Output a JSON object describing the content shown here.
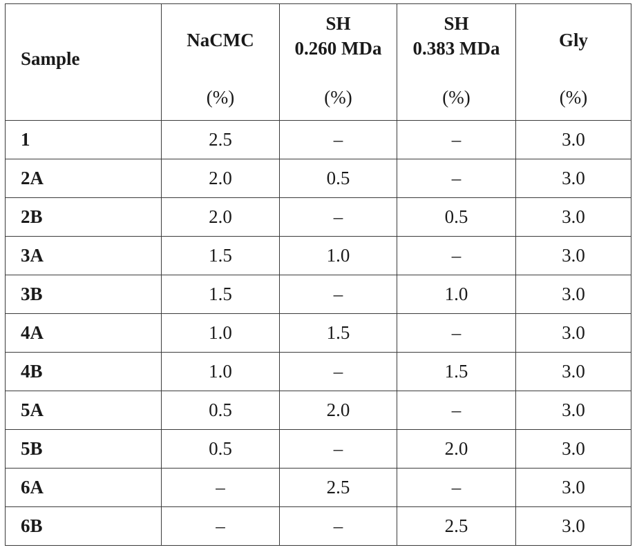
{
  "table": {
    "headers": {
      "sample": "Sample",
      "nacmc": {
        "name": "NaCMC",
        "unit": "(%)"
      },
      "sh260": {
        "line1": "SH",
        "line2": "0.260 MDa",
        "unit": "(%)"
      },
      "sh383": {
        "line1": "SH",
        "line2": "0.383 MDa",
        "unit": "(%)"
      },
      "gly": {
        "name": "Gly",
        "unit": "(%)"
      }
    },
    "rows": [
      [
        "1",
        "2.5",
        "–",
        "–",
        "3.0"
      ],
      [
        "2A",
        "2.0",
        "0.5",
        "–",
        "3.0"
      ],
      [
        "2B",
        "2.0",
        "–",
        "0.5",
        "3.0"
      ],
      [
        "3A",
        "1.5",
        "1.0",
        "–",
        "3.0"
      ],
      [
        "3B",
        "1.5",
        "–",
        "1.0",
        "3.0"
      ],
      [
        "4A",
        "1.0",
        "1.5",
        "–",
        "3.0"
      ],
      [
        "4B",
        "1.0",
        "–",
        "1.5",
        "3.0"
      ],
      [
        "5A",
        "0.5",
        "2.0",
        "–",
        "3.0"
      ],
      [
        "5B",
        "0.5",
        "–",
        "2.0",
        "3.0"
      ],
      [
        "6A",
        "–",
        "2.5",
        "–",
        "3.0"
      ],
      [
        "6B",
        "–",
        "–",
        "2.5",
        "3.0"
      ]
    ]
  }
}
